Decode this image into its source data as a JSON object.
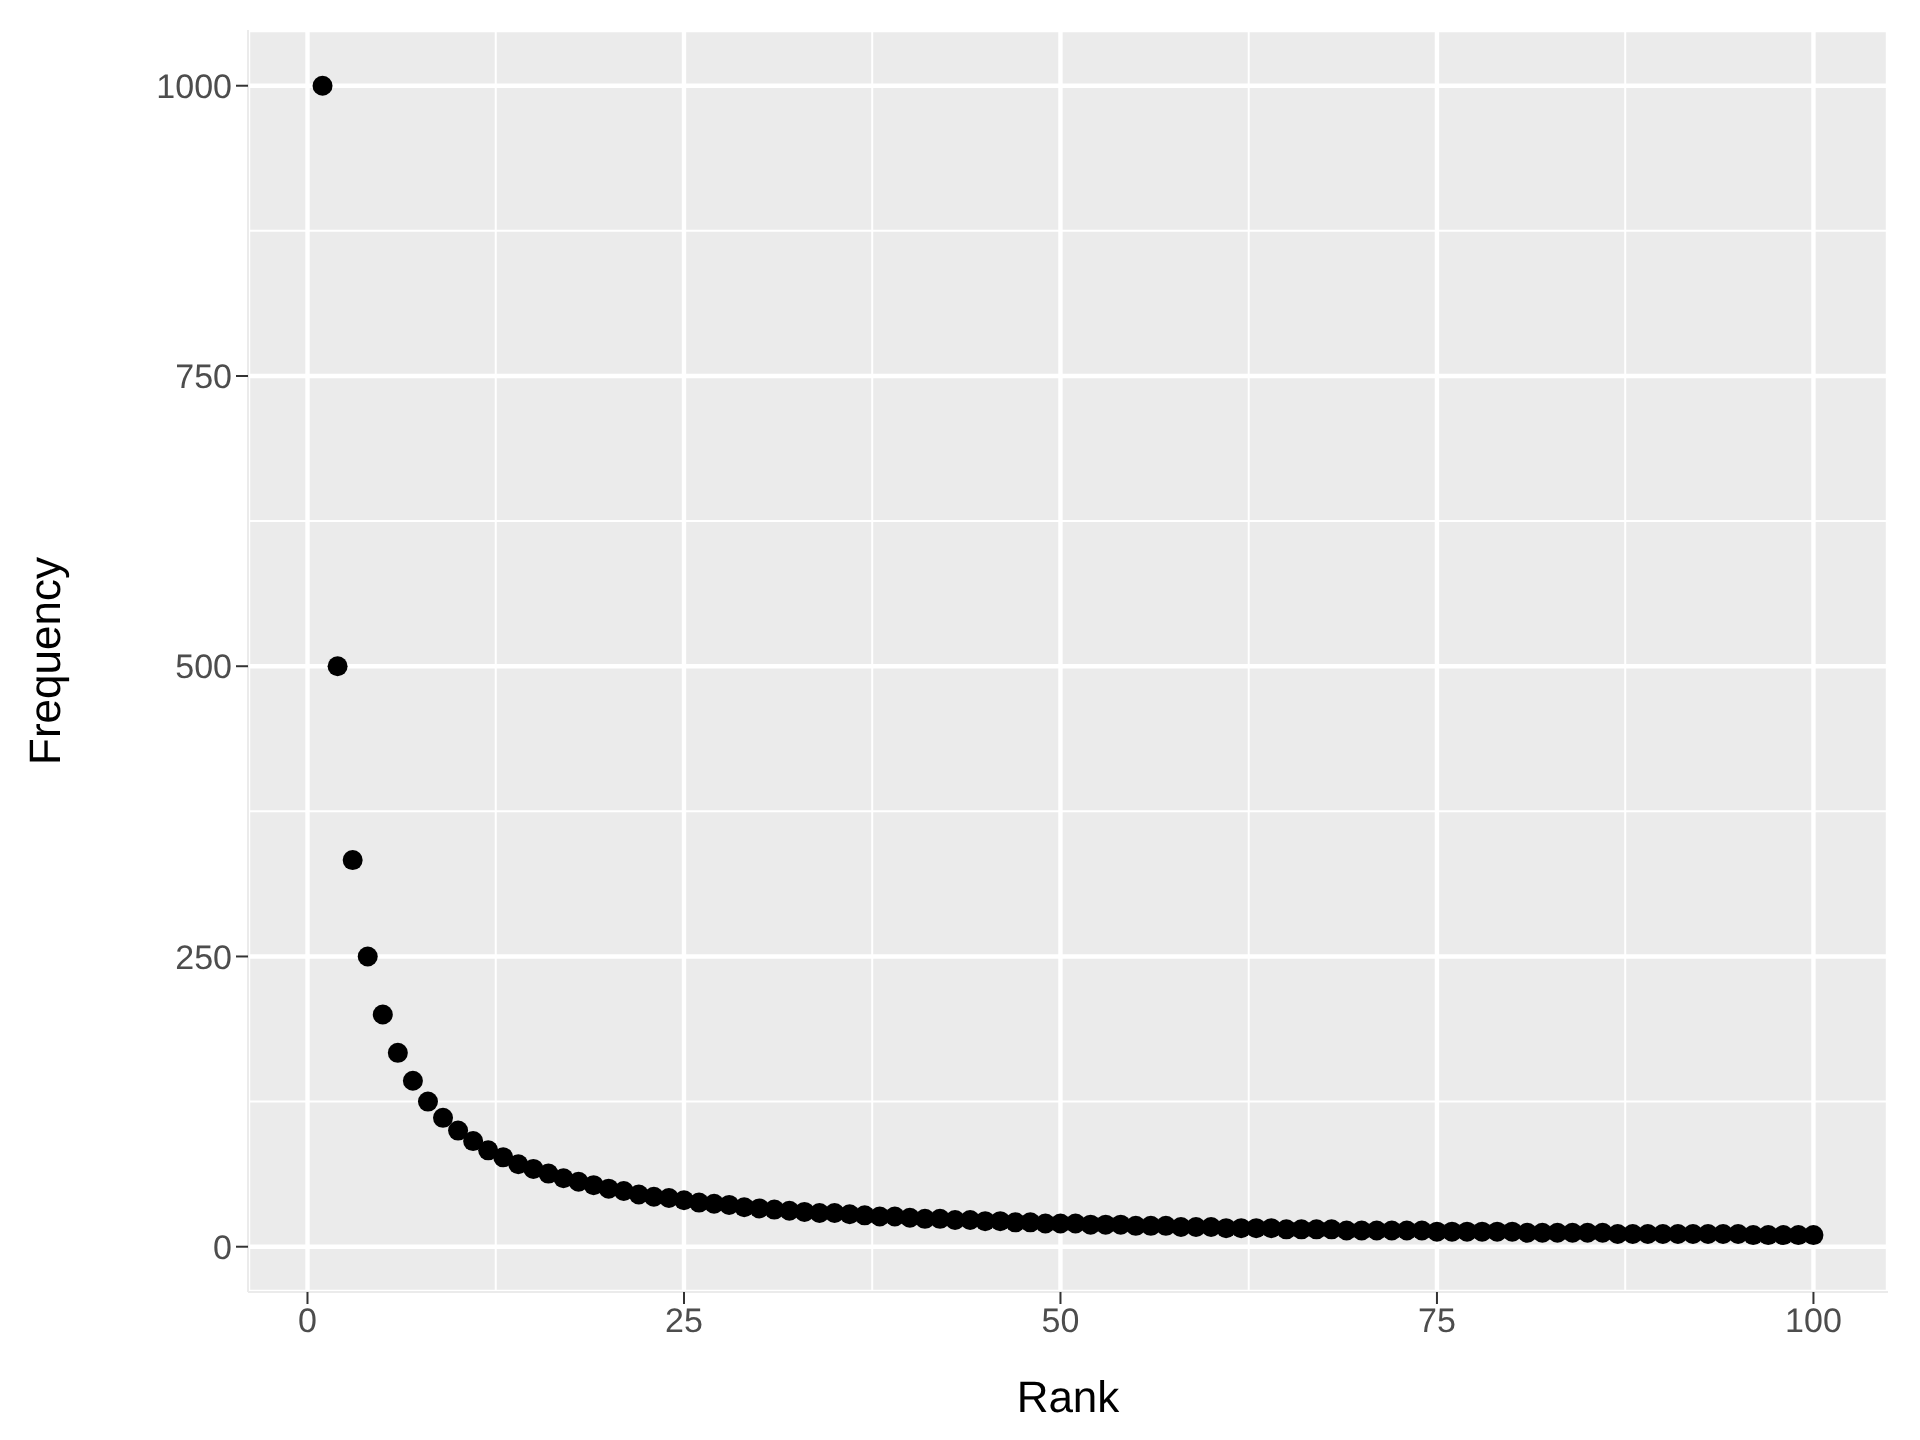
{
  "chart_data": {
    "type": "scatter",
    "xlabel": "Rank",
    "ylabel": "Frequency",
    "x": [
      1,
      2,
      3,
      4,
      5,
      6,
      7,
      8,
      9,
      10,
      11,
      12,
      13,
      14,
      15,
      16,
      17,
      18,
      19,
      20,
      21,
      22,
      23,
      24,
      25,
      26,
      27,
      28,
      29,
      30,
      31,
      32,
      33,
      34,
      35,
      36,
      37,
      38,
      39,
      40,
      41,
      42,
      43,
      44,
      45,
      46,
      47,
      48,
      49,
      50,
      51,
      52,
      53,
      54,
      55,
      56,
      57,
      58,
      59,
      60,
      61,
      62,
      63,
      64,
      65,
      66,
      67,
      68,
      69,
      70,
      71,
      72,
      73,
      74,
      75,
      76,
      77,
      78,
      79,
      80,
      81,
      82,
      83,
      84,
      85,
      86,
      87,
      88,
      89,
      90,
      91,
      92,
      93,
      94,
      95,
      96,
      97,
      98,
      99,
      100
    ],
    "values": [
      1000,
      500,
      333,
      250,
      200,
      167,
      143,
      125,
      111,
      100,
      91,
      83,
      77,
      71,
      67,
      63,
      59,
      56,
      53,
      50,
      48,
      45,
      43,
      42,
      40,
      38,
      37,
      36,
      34,
      33,
      32,
      31,
      30,
      29,
      29,
      28,
      27,
      26,
      26,
      25,
      24,
      24,
      23,
      23,
      22,
      22,
      21,
      21,
      20,
      20,
      20,
      19,
      19,
      19,
      18,
      18,
      18,
      17,
      17,
      17,
      16,
      16,
      16,
      16,
      15,
      15,
      15,
      15,
      14,
      14,
      14,
      14,
      14,
      14,
      13,
      13,
      13,
      13,
      13,
      13,
      12,
      12,
      12,
      12,
      12,
      12,
      11,
      11,
      11,
      11,
      11,
      11,
      11,
      11,
      11,
      10,
      10,
      10,
      10,
      10
    ],
    "color": "#000000",
    "marker": "circle",
    "grid": true,
    "xlim": [
      -3.95,
      104.95
    ],
    "xticks": [
      0,
      25,
      50,
      75,
      100
    ],
    "ylim": [
      -39,
      1048
    ],
    "yticks": [
      0,
      250,
      500,
      750,
      1000
    ]
  }
}
